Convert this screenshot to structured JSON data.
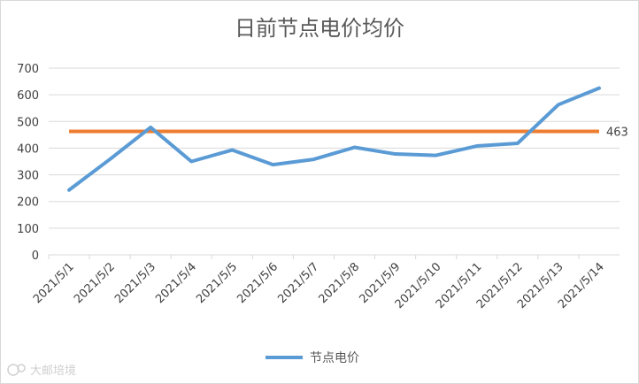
{
  "chart_data": {
    "type": "line",
    "title": "日前节点电价均价",
    "categories": [
      "2021/5/1",
      "2021/5/2",
      "2021/5/3",
      "2021/5/4",
      "2021/5/5",
      "2021/5/6",
      "2021/5/7",
      "2021/5/8",
      "2021/5/9",
      "2021/5/10",
      "2021/5/11",
      "2021/5/12",
      "2021/5/13",
      "2021/5/14"
    ],
    "series": [
      {
        "name": "节点电价",
        "color": "#5b9bd5",
        "values": [
          243,
          358,
          478,
          350,
          393,
          338,
          358,
          403,
          378,
          373,
          408,
          418,
          563,
          625
        ]
      }
    ],
    "reference_line": {
      "value": 463,
      "label": "463",
      "color": "#ed7d31"
    },
    "ylim": [
      0,
      700
    ],
    "yticks": [
      0,
      100,
      200,
      300,
      400,
      500,
      600,
      700
    ],
    "grid": true,
    "legend_position": "bottom"
  },
  "watermark": {
    "text": "大邮培境",
    "icon": "watermark-logo-icon"
  }
}
